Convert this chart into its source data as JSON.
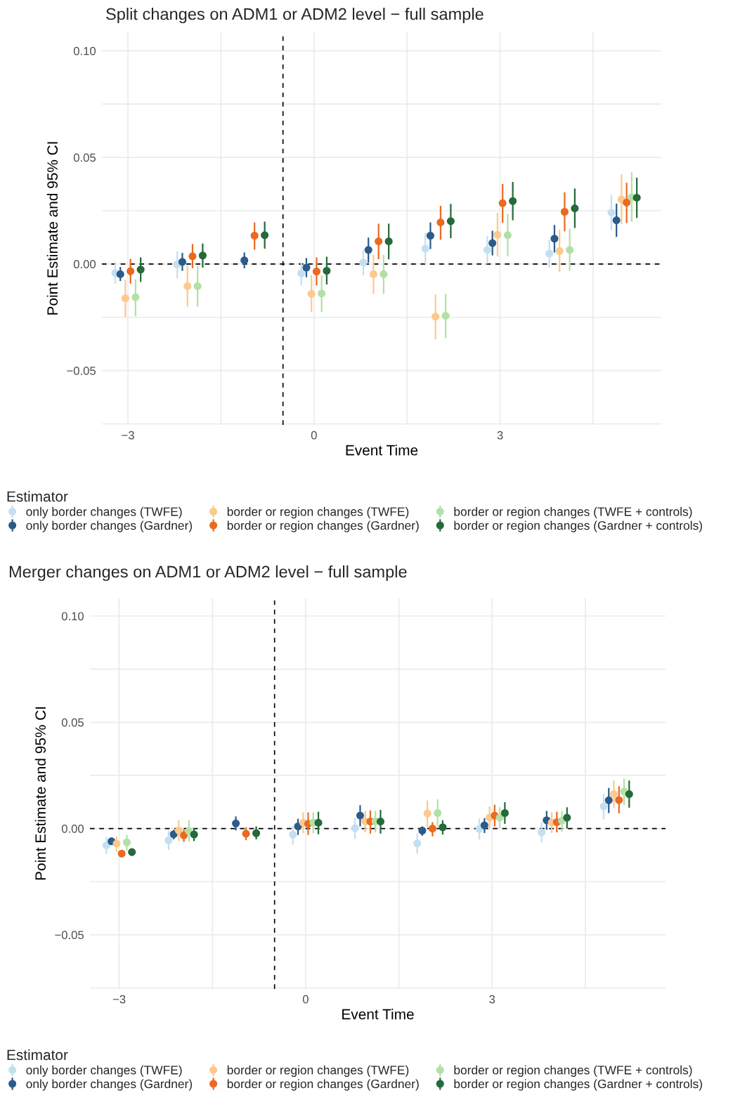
{
  "chart_data": [
    {
      "type": "scatter",
      "title": "Split changes on ADM1 or ADM2 level − full sample",
      "xlabel": "Event Time",
      "ylabel": "Point Estimate and 95% CI",
      "legend_title": "Estimator",
      "legend": "bottom",
      "grid": true,
      "marker": "circle",
      "xlim": [
        -3.42,
        5.6
      ],
      "ylim": [
        -0.0755,
        0.109
      ],
      "xticks": [
        {
          "value": -3,
          "label": "−3"
        },
        {
          "value": -1.5,
          "label": null
        },
        0,
        {
          "value": 1.5,
          "label": null
        },
        3,
        {
          "value": 4.5,
          "label": null
        }
      ],
      "yticks": [
        {
          "value": -0.075,
          "label": null
        },
        {
          "value": -0.05,
          "label": "−0.05"
        },
        {
          "value": -0.025,
          "label": null
        },
        {
          "value": 0,
          "label": "0.00"
        },
        {
          "value": 0.025,
          "label": null
        },
        {
          "value": 0.05,
          "label": "0.05"
        },
        {
          "value": 0.075,
          "label": null
        },
        {
          "value": 0.1,
          "label": "0.10"
        }
      ],
      "ref_lines": [
        {
          "axis": "x",
          "value": -0.5,
          "color": "#000000",
          "line_style": "dashed"
        },
        {
          "axis": "y",
          "value": 0,
          "color": "#000000",
          "line_style": "dashed"
        }
      ],
      "series": [
        {
          "name": "only border changes (TWFE)",
          "color": "#c3dff2",
          "x": [
            -3.205,
            -2.205,
            -1.205,
            -0.205,
            0.795,
            1.795,
            2.795,
            3.795,
            4.795
          ],
          "values": [
            -0.0042,
            -0.0002,
            null,
            -0.0044,
            0.0007,
            0.0072,
            0.0066,
            0.0049,
            0.0241
          ],
          "errors": [
            [
              -0.0092,
              0.001
            ],
            [
              -0.0068,
              0.006
            ],
            null,
            [
              -0.0098,
              0.001
            ],
            [
              -0.0053,
              0.0064
            ],
            [
              0.0001,
              0.0145
            ],
            [
              0.0001,
              0.013
            ],
            [
              -0.0017,
              0.0114
            ],
            [
              0.0159,
              0.0324
            ]
          ]
        },
        {
          "name": "only border changes (Gardner)",
          "color": "#2b5b8b",
          "x": [
            -3.123,
            -2.123,
            -1.123,
            -0.123,
            0.877,
            1.877,
            2.877,
            3.877,
            4.877
          ],
          "values": [
            -0.0048,
            0.001,
            0.0017,
            -0.0017,
            0.0066,
            0.0133,
            0.0098,
            0.0119,
            0.0205
          ],
          "errors": [
            [
              -0.008,
              -0.0014
            ],
            [
              -0.0032,
              0.0052
            ],
            [
              -0.002,
              0.0054
            ],
            [
              -0.0062,
              0.0028
            ],
            [
              0.0006,
              0.0124
            ],
            [
              0.007,
              0.0195
            ],
            [
              0.004,
              0.0156
            ],
            [
              0.0054,
              0.0183
            ],
            [
              0.0127,
              0.0283
            ]
          ]
        },
        {
          "name": "border or region changes (TWFE)",
          "color": "#fdc98c",
          "x": [
            -3.041,
            -2.041,
            -1.041,
            -0.041,
            0.959,
            1.959,
            2.959,
            3.959,
            4.959
          ],
          "values": [
            -0.0161,
            -0.0104,
            null,
            -0.014,
            -0.0048,
            -0.0247,
            0.0137,
            0.0061,
            0.0303
          ],
          "errors": [
            [
              -0.0248,
              -0.0074
            ],
            [
              -0.02,
              -0.0008
            ],
            null,
            [
              -0.0224,
              -0.0053
            ],
            [
              -0.014,
              0.0043
            ],
            [
              -0.0353,
              -0.0143
            ],
            [
              0.0036,
              0.024
            ],
            [
              -0.0038,
              0.016
            ],
            [
              0.0187,
              0.042
            ]
          ]
        },
        {
          "name": "border or region changes (Gardner)",
          "color": "#e96a21",
          "x": [
            -2.959,
            -1.959,
            -0.959,
            0.041,
            1.041,
            2.041,
            3.041,
            4.041,
            5.041
          ],
          "values": [
            -0.0034,
            0.0036,
            0.0133,
            -0.0035,
            0.0106,
            0.0195,
            0.0285,
            0.0245,
            0.0288
          ],
          "errors": [
            [
              -0.0092,
              0.0024
            ],
            [
              -0.002,
              0.0094
            ],
            [
              0.0067,
              0.0195
            ],
            [
              -0.0101,
              0.0031
            ],
            [
              0.0022,
              0.0189
            ],
            [
              0.0114,
              0.0273
            ],
            [
              0.0193,
              0.0375
            ],
            [
              0.0153,
              0.0336
            ],
            [
              0.0192,
              0.0381
            ]
          ]
        },
        {
          "name": "border or region changes (TWFE + controls)",
          "color": "#b3e0a6",
          "x": [
            -2.877,
            -1.877,
            -0.877,
            0.123,
            1.123,
            2.123,
            3.123,
            4.123,
            5.123
          ],
          "values": [
            -0.0156,
            -0.0104,
            null,
            -0.0138,
            -0.0048,
            -0.0243,
            0.0135,
            0.0066,
            0.0313
          ],
          "errors": [
            [
              -0.0245,
              -0.0072
            ],
            [
              -0.02,
              -0.0008
            ],
            null,
            [
              -0.0224,
              -0.0053
            ],
            [
              -0.014,
              0.0043
            ],
            [
              -0.0348,
              -0.014
            ],
            [
              0.0036,
              0.0235
            ],
            [
              -0.0032,
              0.0165
            ],
            [
              0.0198,
              0.043
            ]
          ]
        },
        {
          "name": "border or region changes (Gardner + controls)",
          "color": "#246a3a",
          "x": [
            -2.795,
            -1.795,
            -0.795,
            0.205,
            1.205,
            2.205,
            3.205,
            4.205,
            5.205
          ],
          "values": [
            -0.0026,
            0.004,
            0.0135,
            -0.0032,
            0.0106,
            0.0201,
            0.0295,
            0.0261,
            0.0311
          ],
          "errors": [
            [
              -0.0084,
              0.0031
            ],
            [
              -0.0017,
              0.0096
            ],
            [
              0.0072,
              0.0199
            ],
            [
              -0.0096,
              0.0034
            ],
            [
              0.0022,
              0.0189
            ],
            [
              0.0121,
              0.0282
            ],
            [
              0.0205,
              0.0385
            ],
            [
              0.0169,
              0.0354
            ],
            [
              0.0216,
              0.0405
            ]
          ]
        }
      ]
    },
    {
      "type": "scatter",
      "title": "Merger changes on ADM1 or ADM2 level − full sample",
      "xlabel": "Event Time",
      "ylabel": "Point Estimate and 95% CI",
      "legend_title": "Estimator",
      "legend": "bottom",
      "grid": true,
      "marker": "circle",
      "xlim": [
        -3.47,
        5.79
      ],
      "ylim": [
        -0.0755,
        0.1086
      ],
      "xticks": [
        {
          "value": -3,
          "label": "−3"
        },
        {
          "value": -1.5,
          "label": null
        },
        0,
        {
          "value": 1.5,
          "label": null
        },
        3,
        {
          "value": 4.5,
          "label": null
        }
      ],
      "yticks": [
        {
          "value": -0.075,
          "label": null
        },
        {
          "value": -0.05,
          "label": "−0.05"
        },
        {
          "value": -0.025,
          "label": null
        },
        {
          "value": 0,
          "label": "0.00"
        },
        {
          "value": 0.025,
          "label": null
        },
        {
          "value": 0.05,
          "label": "0.05"
        },
        {
          "value": 0.075,
          "label": null
        },
        {
          "value": 0.1,
          "label": "0.10"
        }
      ],
      "ref_lines": [
        {
          "axis": "x",
          "value": -0.5,
          "color": "#000000",
          "line_style": "dashed"
        },
        {
          "axis": "y",
          "value": 0,
          "color": "#000000",
          "line_style": "dashed"
        }
      ],
      "series": [
        {
          "name": "only border changes (TWFE)",
          "color": "#c3dff2",
          "x": [
            -3.205,
            -2.205,
            -1.205,
            -0.205,
            0.795,
            1.795,
            2.795,
            3.795,
            4.795
          ],
          "values": [
            -0.0079,
            -0.0055,
            null,
            -0.0029,
            0.0002,
            -0.007,
            -0.0002,
            -0.0018,
            0.0104
          ],
          "errors": [
            [
              -0.012,
              -0.0039
            ],
            [
              -0.0101,
              -0.001
            ],
            null,
            [
              -0.0076,
              0.0012
            ],
            [
              -0.0049,
              0.0049
            ],
            [
              -0.0118,
              -0.0022
            ],
            [
              -0.0051,
              0.0046
            ],
            [
              -0.0065,
              0.003
            ],
            [
              0.0043,
              0.0162
            ]
          ]
        },
        {
          "name": "only border changes (Gardner)",
          "color": "#2b5b8b",
          "x": [
            -3.123,
            -2.123,
            -1.123,
            -0.123,
            0.877,
            1.877,
            2.877,
            3.877,
            4.877
          ],
          "values": [
            -0.006,
            -0.0027,
            0.0024,
            0.001,
            0.0061,
            -0.001,
            0.0015,
            0.0039,
            0.0133
          ],
          "errors": [
            [
              -0.0073,
              -0.0043
            ],
            [
              -0.0051,
              -0.0006
            ],
            [
              -0.0009,
              0.0057
            ],
            [
              -0.003,
              0.0046
            ],
            [
              0.001,
              0.011
            ],
            [
              -0.0034,
              0.001
            ],
            [
              -0.0021,
              0.0049
            ],
            [
              -0.0006,
              0.0083
            ],
            [
              0.0073,
              0.0191
            ]
          ]
        },
        {
          "name": "border or region changes (TWFE)",
          "color": "#fdc98c",
          "x": [
            -3.041,
            -2.041,
            -1.041,
            -0.041,
            0.959,
            1.959,
            2.959,
            3.959,
            4.959
          ],
          "values": [
            -0.0071,
            -0.0009,
            null,
            0.0028,
            0.0034,
            0.0071,
            0.0052,
            0.0028,
            0.0162
          ],
          "errors": [
            [
              -0.011,
              -0.0037
            ],
            [
              -0.0059,
              0.0039
            ],
            null,
            [
              -0.0022,
              0.0076
            ],
            [
              -0.0018,
              0.0083
            ],
            [
              0.0006,
              0.0132
            ],
            [
              0.0002,
              0.0104
            ],
            [
              -0.0021,
              0.0077
            ],
            [
              0.0098,
              0.0226
            ]
          ]
        },
        {
          "name": "border or region changes (Gardner)",
          "color": "#e96a21",
          "x": [
            -2.959,
            -1.959,
            -0.959,
            0.041,
            1.041,
            2.041,
            3.041,
            4.041,
            5.041
          ],
          "values": [
            -0.0118,
            -0.0032,
            -0.0024,
            0.0022,
            0.0033,
            0.0,
            0.0061,
            0.003,
            0.0134
          ],
          "errors": [
            [
              -0.0134,
              -0.0104
            ],
            [
              -0.0063,
              -0.0006
            ],
            [
              -0.0055,
              0.0006
            ],
            [
              -0.003,
              0.0076
            ],
            [
              -0.0024,
              0.0085
            ],
            [
              -0.0037,
              0.003
            ],
            [
              0.001,
              0.0112
            ],
            [
              -0.0018,
              0.0079
            ],
            [
              0.0071,
              0.0199
            ]
          ]
        },
        {
          "name": "border or region changes (TWFE + controls)",
          "color": "#b3e0a6",
          "x": [
            -2.877,
            -1.877,
            -0.877,
            0.123,
            1.123,
            2.123,
            3.123,
            4.123,
            5.123
          ],
          "values": [
            -0.0065,
            -0.0012,
            null,
            0.0028,
            0.0034,
            0.0073,
            0.0051,
            0.0037,
            0.0174
          ],
          "errors": [
            [
              -0.0104,
              -0.003
            ],
            [
              -0.0061,
              0.0039
            ],
            null,
            [
              -0.0022,
              0.0076
            ],
            [
              -0.0018,
              0.0083
            ],
            [
              0.001,
              0.0137
            ],
            [
              0.0002,
              0.01
            ],
            [
              -0.0015,
              0.0083
            ],
            [
              0.011,
              0.0235
            ]
          ]
        },
        {
          "name": "border or region changes (Gardner + controls)",
          "color": "#246a3a",
          "x": [
            -2.795,
            -1.795,
            -0.795,
            0.205,
            1.205,
            2.205,
            3.205,
            4.205,
            5.205
          ],
          "values": [
            -0.0111,
            -0.0028,
            -0.0022,
            0.0027,
            0.0033,
            0.0006,
            0.0073,
            0.0051,
            0.0162
          ],
          "errors": [
            [
              -0.0128,
              -0.0098
            ],
            [
              -0.0059,
              0.0002
            ],
            [
              -0.0051,
              0.001
            ],
            [
              -0.0027,
              0.0079
            ],
            [
              -0.0024,
              0.0088
            ],
            [
              -0.0028,
              0.0039
            ],
            [
              0.0022,
              0.0124
            ],
            [
              0.0,
              0.01
            ],
            [
              0.0098,
              0.0226
            ]
          ]
        }
      ]
    }
  ]
}
